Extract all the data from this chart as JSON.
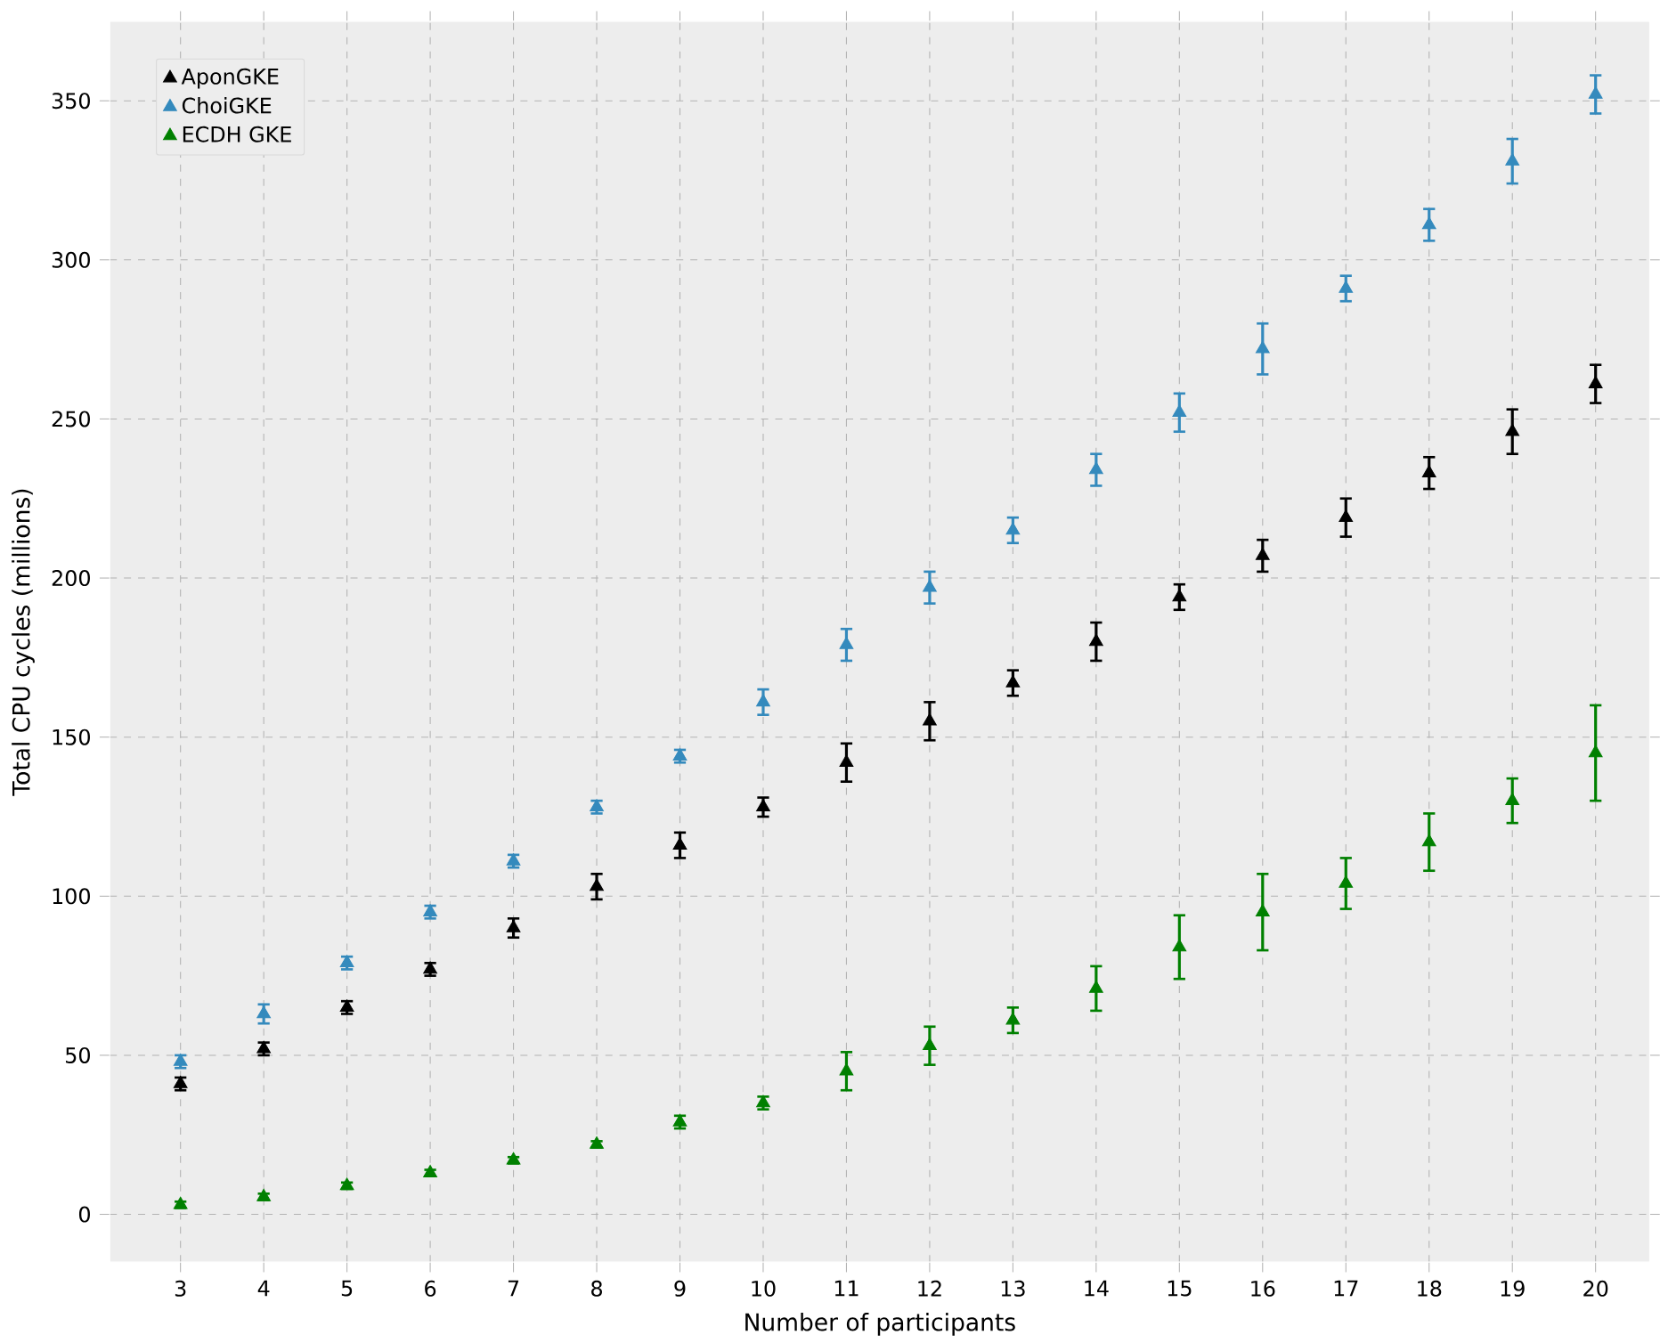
{
  "chart_data": {
    "type": "scatter",
    "xlabel": "Number of participants",
    "ylabel": "Total CPU cycles (millions)",
    "x": [
      3,
      4,
      5,
      6,
      7,
      8,
      9,
      10,
      11,
      12,
      13,
      14,
      15,
      16,
      17,
      18,
      19,
      20
    ],
    "series": [
      {
        "name": "AponGKE",
        "color": "#000000",
        "values": [
          41,
          52,
          65,
          77,
          90,
          103,
          116,
          128,
          142,
          155,
          167,
          180,
          194,
          207,
          219,
          233,
          246,
          261
        ],
        "errors": [
          2,
          2,
          2,
          2,
          3,
          4,
          4,
          3,
          6,
          6,
          4,
          6,
          4,
          5,
          6,
          5,
          7,
          6
        ]
      },
      {
        "name": "ChoiGKE",
        "color": "#348abd",
        "values": [
          48,
          63,
          79,
          95,
          111,
          128,
          144,
          161,
          179,
          197,
          215,
          234,
          252,
          272,
          291,
          311,
          331,
          352
        ],
        "errors": [
          2,
          3,
          2,
          2,
          2,
          2,
          2,
          4,
          5,
          5,
          4,
          5,
          6,
          8,
          4,
          5,
          7,
          6
        ]
      },
      {
        "name": "ECDH GKE",
        "color": "#008000",
        "values": [
          3,
          5.5,
          9,
          13,
          17,
          22,
          29,
          35,
          45,
          53,
          61,
          71,
          84,
          95,
          104,
          117,
          130,
          145
        ],
        "errors": [
          1,
          1,
          1,
          1,
          1,
          1,
          2,
          2,
          6,
          6,
          4,
          7,
          10,
          12,
          8,
          9,
          7,
          15
        ]
      }
    ],
    "xlim": [
      2.15,
      20.65
    ],
    "ylim": [
      -15,
      375
    ],
    "xticks": [
      3,
      4,
      5,
      6,
      7,
      8,
      9,
      10,
      11,
      12,
      13,
      14,
      15,
      16,
      17,
      18,
      19,
      20
    ],
    "yticks": [
      0,
      50,
      100,
      150,
      200,
      250,
      300,
      350
    ],
    "grid": true,
    "legend": "top left",
    "marker": "triangle"
  }
}
